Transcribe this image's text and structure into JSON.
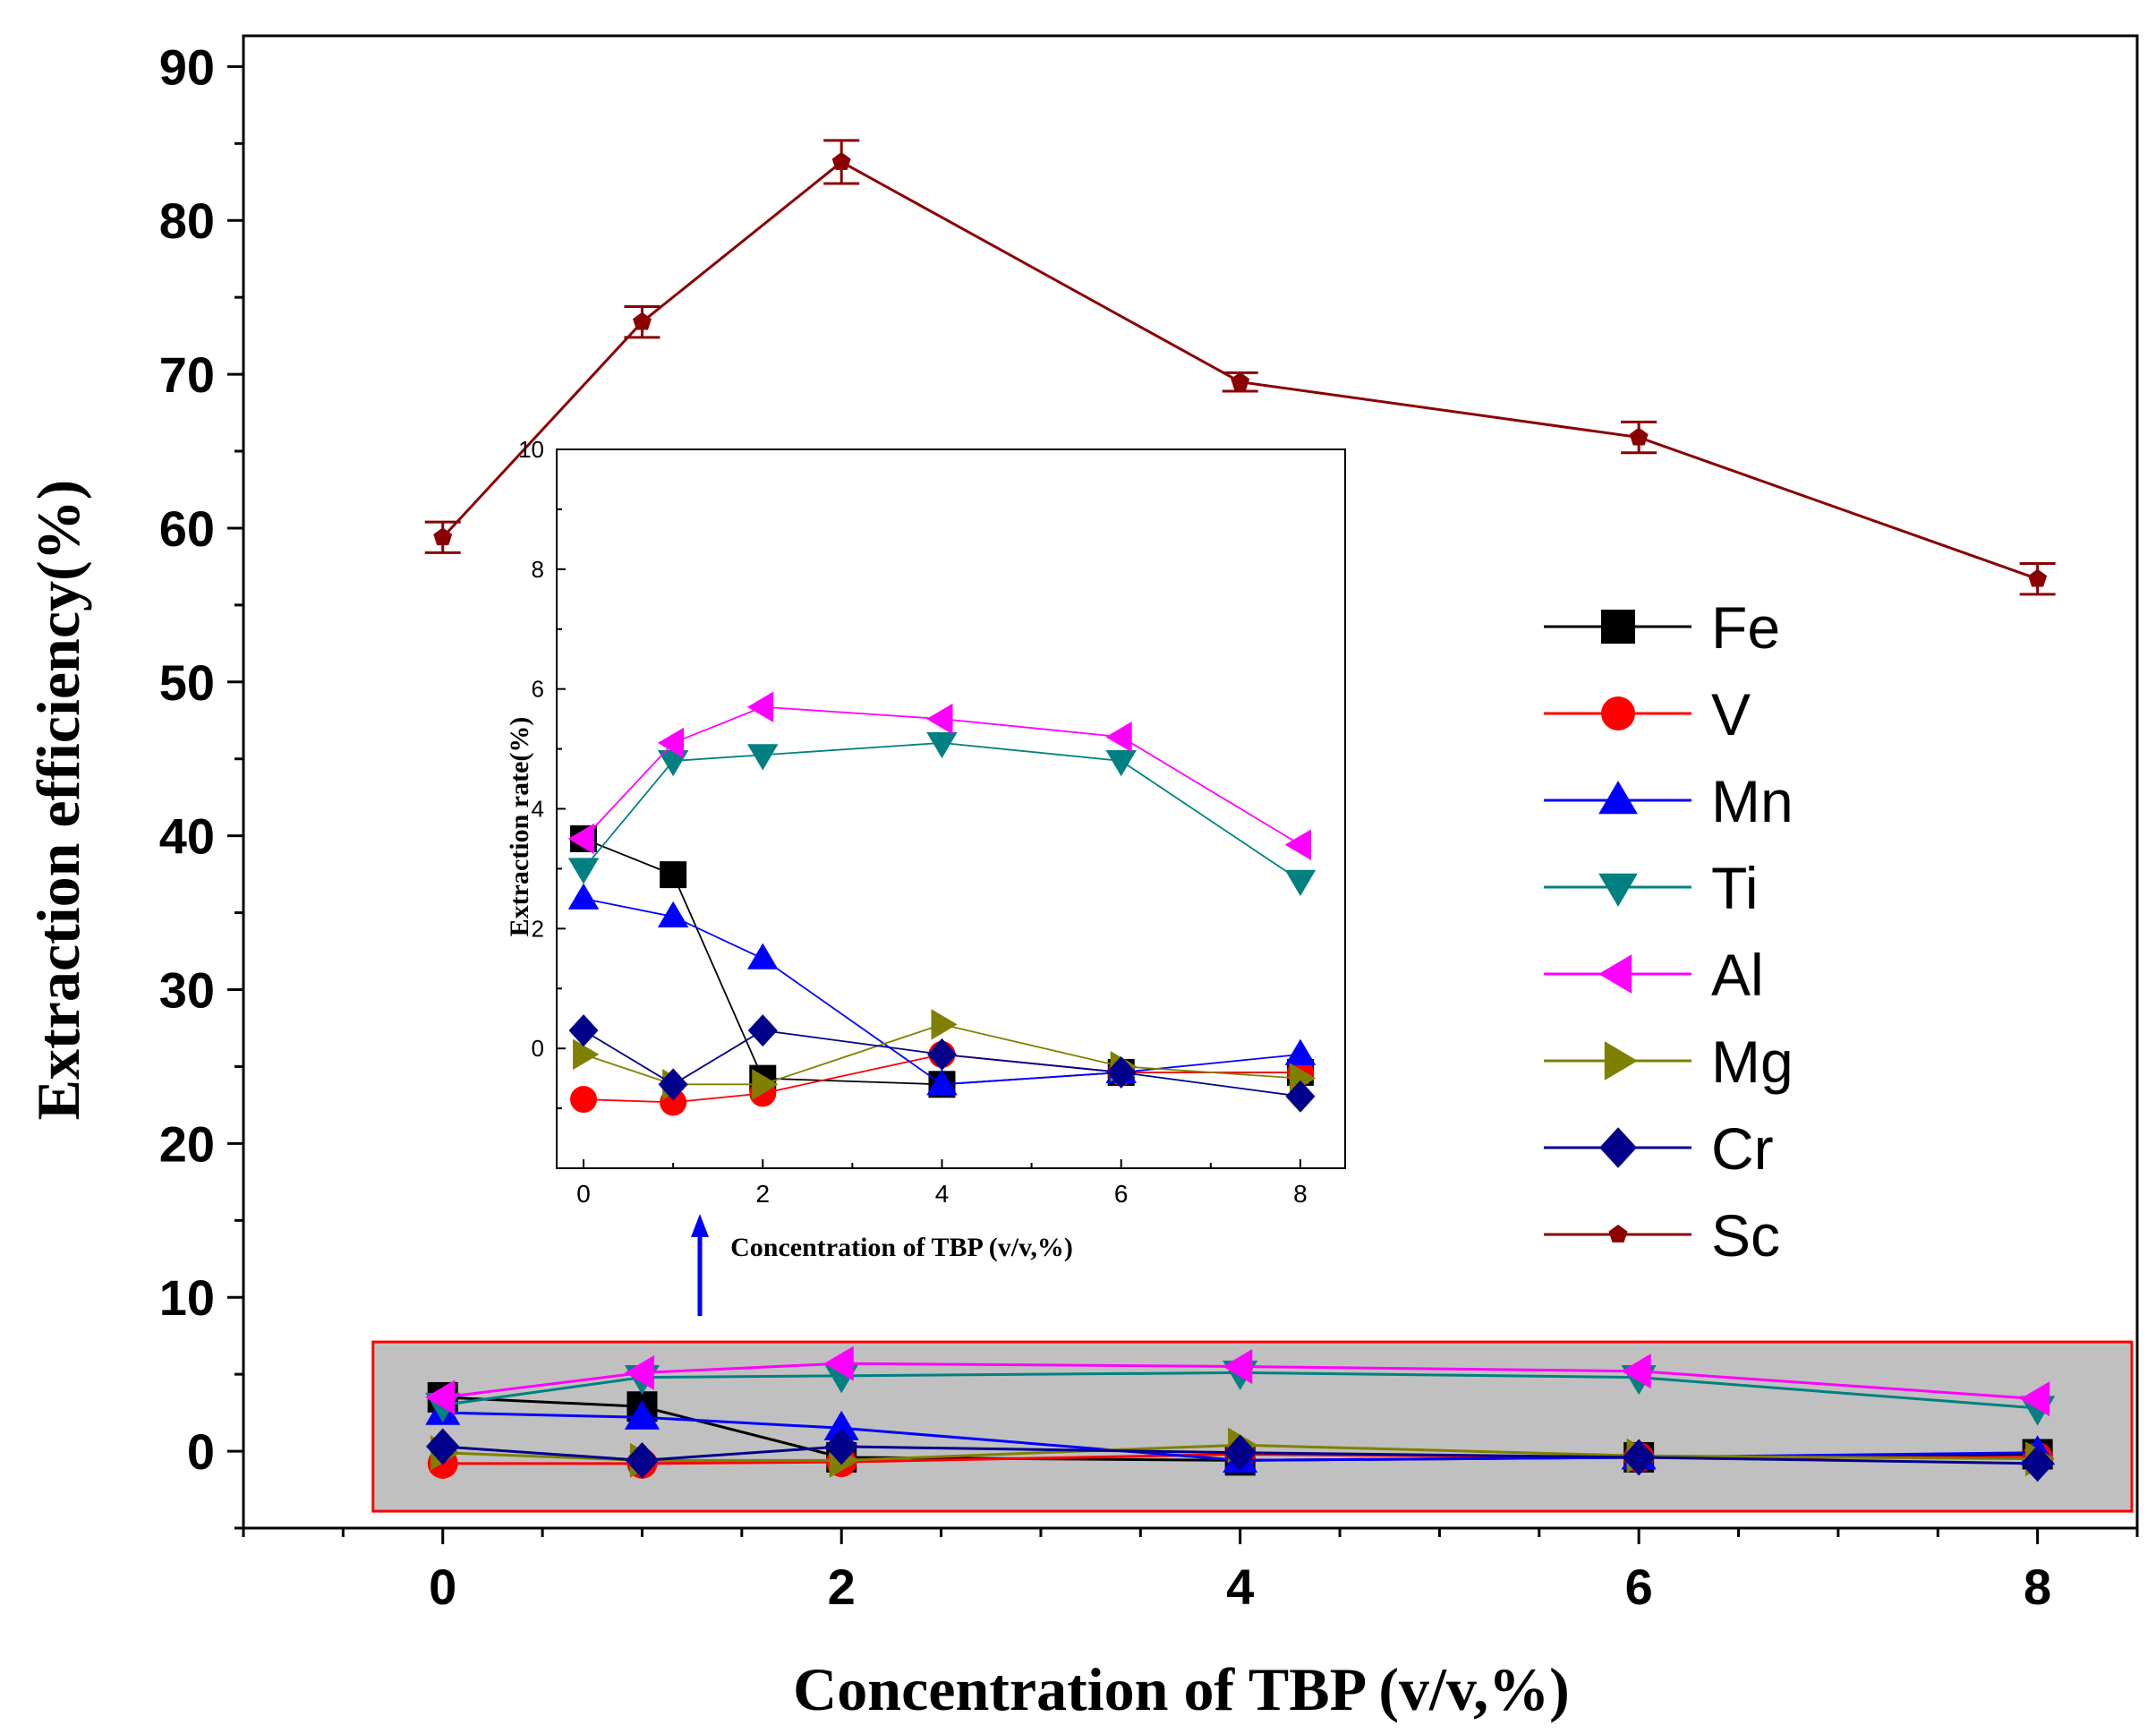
{
  "chart_data": [
    {
      "id": "main",
      "type": "line",
      "xlabel": "Concentration of TBP (v/v,%)",
      "ylabel": "Extraction efficiency(%)",
      "xlim": [
        -1,
        8.5
      ],
      "ylim": [
        -5,
        92
      ],
      "x_ticks": [
        0,
        2,
        4,
        6,
        8
      ],
      "y_ticks": [
        0,
        10,
        20,
        30,
        40,
        50,
        60,
        70,
        80,
        90
      ],
      "x": [
        0,
        1,
        2,
        4,
        6,
        8
      ],
      "series": [
        {
          "name": "Fe",
          "color": "#000000",
          "marker": "square",
          "values": [
            3.5,
            2.9,
            -0.4,
            -0.6,
            -0.4,
            -0.2
          ]
        },
        {
          "name": "V",
          "color": "#ff0000",
          "marker": "circle",
          "values": [
            -0.8,
            -0.8,
            -0.7,
            -0.2,
            -0.4,
            -0.4
          ]
        },
        {
          "name": "Mn",
          "color": "#0000ff",
          "marker": "triangle-up",
          "values": [
            2.5,
            2.2,
            1.5,
            -0.6,
            -0.4,
            -0.1
          ]
        },
        {
          "name": "Ti",
          "color": "#008080",
          "marker": "triangle-down",
          "values": [
            3.0,
            4.8,
            4.9,
            5.1,
            4.8,
            2.8
          ]
        },
        {
          "name": "Al",
          "color": "#ff00ff",
          "marker": "triangle-left",
          "values": [
            3.5,
            5.1,
            5.7,
            5.5,
            5.2,
            3.4
          ]
        },
        {
          "name": "Mg",
          "color": "#808000",
          "marker": "triangle-right",
          "values": [
            -0.1,
            -0.6,
            -0.6,
            0.4,
            -0.3,
            -0.5
          ]
        },
        {
          "name": "Cr",
          "color": "#00008b",
          "marker": "diamond",
          "values": [
            0.3,
            -0.6,
            0.3,
            -0.1,
            -0.4,
            -0.8
          ]
        },
        {
          "name": "Sc",
          "color": "#8b0000",
          "marker": "pentagon",
          "values": [
            59.4,
            73.4,
            83.8,
            69.5,
            65.9,
            56.7
          ],
          "error": [
            1.0,
            1.0,
            1.4,
            0.6,
            1.0,
            1.0
          ]
        }
      ]
    },
    {
      "id": "inset",
      "type": "line",
      "xlabel": "Concentration of TBP (v/v,%)",
      "ylabel": "Extraction rate(%)",
      "xlim": [
        -0.3,
        8.5
      ],
      "ylim": [
        -2,
        10
      ],
      "x_ticks": [
        0,
        2,
        4,
        6,
        8
      ],
      "y_ticks": [
        0,
        2,
        4,
        6,
        8,
        10
      ],
      "x": [
        0,
        1,
        2,
        4,
        6,
        8
      ],
      "series": [
        {
          "name": "Fe",
          "color": "#000000",
          "marker": "square",
          "values": [
            3.5,
            2.9,
            -0.5,
            -0.6,
            -0.4,
            -0.4
          ]
        },
        {
          "name": "V",
          "color": "#ff0000",
          "marker": "circle",
          "values": [
            -0.85,
            -0.9,
            -0.75,
            -0.1,
            -0.4,
            -0.4
          ]
        },
        {
          "name": "Mn",
          "color": "#0000ff",
          "marker": "triangle-up",
          "values": [
            2.5,
            2.2,
            1.5,
            -0.6,
            -0.4,
            -0.1
          ]
        },
        {
          "name": "Ti",
          "color": "#008080",
          "marker": "triangle-down",
          "values": [
            3.0,
            4.8,
            4.9,
            5.1,
            4.8,
            2.8
          ]
        },
        {
          "name": "Al",
          "color": "#ff00ff",
          "marker": "triangle-left",
          "values": [
            3.5,
            5.1,
            5.7,
            5.5,
            5.2,
            3.4
          ]
        },
        {
          "name": "Mg",
          "color": "#808000",
          "marker": "triangle-right",
          "values": [
            -0.1,
            -0.6,
            -0.6,
            0.4,
            -0.3,
            -0.5
          ]
        },
        {
          "name": "Cr",
          "color": "#00008b",
          "marker": "diamond",
          "values": [
            0.3,
            -0.6,
            0.3,
            -0.1,
            -0.4,
            -0.8
          ]
        }
      ]
    }
  ],
  "legend": {
    "placement": "right",
    "entries": [
      "Fe",
      "V",
      "Mn",
      "Ti",
      "Al",
      "Mg",
      "Cr",
      "Sc"
    ]
  }
}
